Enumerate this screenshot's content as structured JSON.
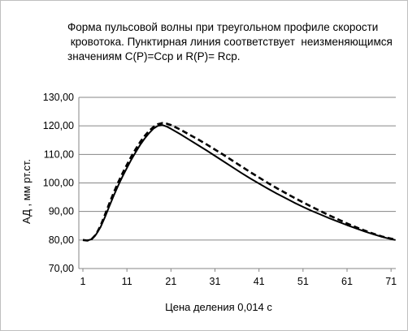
{
  "chart_data": {
    "type": "line",
    "title_lines": [
      "Форма пульсовой волны при треугольном профиле скорости",
      " кровотока. Пунктирная линия соответствует  неизменяющимся",
      "значениям C(P)=Cср и R(P)= Rср."
    ],
    "xlabel": "Цена деления 0,014 с",
    "ylabel": "АД , мм рт.ст.",
    "xlim": [
      1,
      73
    ],
    "ylim": [
      70,
      130
    ],
    "x_ticks": [
      "1",
      "11",
      "21",
      "31",
      "41",
      "51",
      "61",
      "71"
    ],
    "y_ticks": [
      "70,00",
      "80,00",
      "90,00",
      "100,00",
      "110,00",
      "120,00",
      "130,00"
    ],
    "grid": "horizontal",
    "legend": "none",
    "series": [
      {
        "style": "solid",
        "color": "#000000",
        "points": [
          [
            1,
            80
          ],
          [
            2,
            79.8
          ],
          [
            3,
            80.3
          ],
          [
            4,
            82
          ],
          [
            5,
            84.5
          ],
          [
            6,
            88
          ],
          [
            7,
            91.8
          ],
          [
            8,
            95.5
          ],
          [
            9,
            99
          ],
          [
            10,
            102.3
          ],
          [
            11,
            105.3
          ],
          [
            12,
            108.2
          ],
          [
            13,
            110.8
          ],
          [
            14,
            113.3
          ],
          [
            15,
            115.5
          ],
          [
            16,
            117.4
          ],
          [
            17,
            119
          ],
          [
            18,
            120
          ],
          [
            19,
            120.3
          ],
          [
            20,
            119.8
          ],
          [
            21,
            119
          ],
          [
            23,
            117.2
          ],
          [
            25,
            115.3
          ],
          [
            27,
            113.4
          ],
          [
            29,
            111.5
          ],
          [
            31,
            109.5
          ],
          [
            33,
            107.5
          ],
          [
            35,
            105.5
          ],
          [
            37,
            103.5
          ],
          [
            39,
            101.6
          ],
          [
            41,
            99.8
          ],
          [
            43,
            98
          ],
          [
            45,
            96.3
          ],
          [
            47,
            94.7
          ],
          [
            49,
            93.1
          ],
          [
            51,
            91.6
          ],
          [
            53,
            90.2
          ],
          [
            55,
            88.9
          ],
          [
            57,
            87.6
          ],
          [
            59,
            86.4
          ],
          [
            61,
            85.2
          ],
          [
            63,
            84.1
          ],
          [
            65,
            83
          ],
          [
            67,
            82
          ],
          [
            69,
            81.1
          ],
          [
            71,
            80.3
          ],
          [
            72,
            80
          ]
        ]
      },
      {
        "style": "dashed",
        "color": "#000000",
        "points": [
          [
            1,
            80
          ],
          [
            2,
            79.8
          ],
          [
            3,
            80.3
          ],
          [
            4,
            82
          ],
          [
            5,
            85
          ],
          [
            6,
            88.8
          ],
          [
            7,
            92.8
          ],
          [
            8,
            96.6
          ],
          [
            9,
            100.1
          ],
          [
            10,
            103.4
          ],
          [
            11,
            106.4
          ],
          [
            12,
            109.3
          ],
          [
            13,
            111.9
          ],
          [
            14,
            114.3
          ],
          [
            15,
            116.4
          ],
          [
            16,
            118.2
          ],
          [
            17,
            119.6
          ],
          [
            18,
            120.6
          ],
          [
            19,
            121
          ],
          [
            20,
            120.8
          ],
          [
            21,
            120.3
          ],
          [
            23,
            118.8
          ],
          [
            25,
            117.1
          ],
          [
            27,
            115.4
          ],
          [
            29,
            113.6
          ],
          [
            31,
            111.7
          ],
          [
            33,
            109.8
          ],
          [
            35,
            107.8
          ],
          [
            37,
            105.8
          ],
          [
            39,
            103.8
          ],
          [
            41,
            101.9
          ],
          [
            43,
            100
          ],
          [
            45,
            98.2
          ],
          [
            47,
            96.5
          ],
          [
            49,
            94.8
          ],
          [
            51,
            93.2
          ],
          [
            53,
            91.6
          ],
          [
            55,
            90.1
          ],
          [
            57,
            88.6
          ],
          [
            59,
            87.2
          ],
          [
            61,
            85.8
          ],
          [
            63,
            84.5
          ],
          [
            65,
            83.3
          ],
          [
            67,
            82.2
          ],
          [
            69,
            81.2
          ],
          [
            71,
            80.5
          ],
          [
            72,
            80.1
          ]
        ]
      }
    ]
  }
}
